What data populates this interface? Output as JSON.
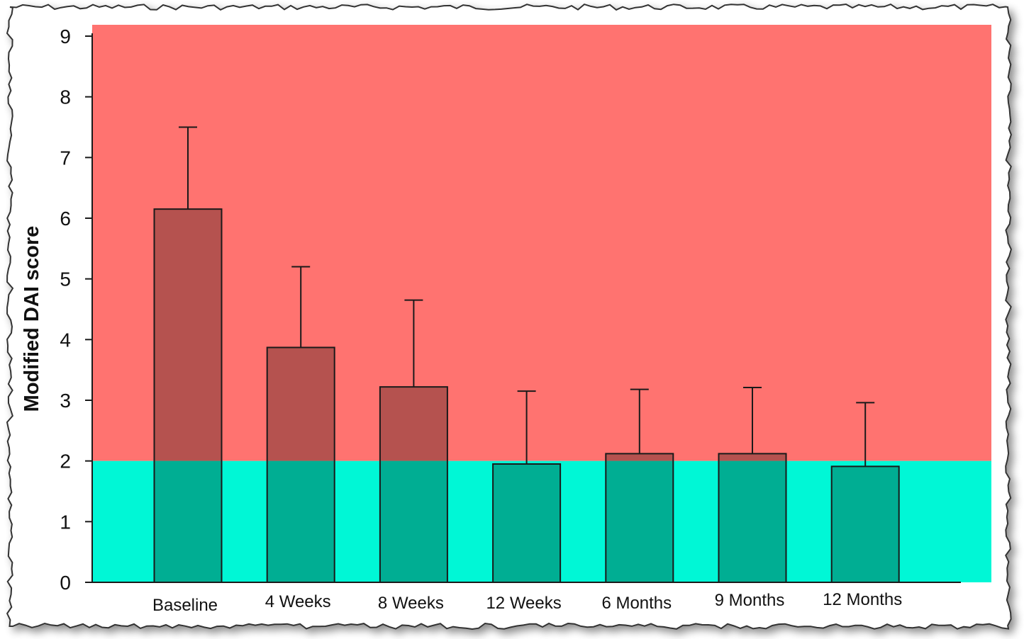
{
  "chart_data": {
    "type": "bar",
    "title": "",
    "xlabel": "",
    "ylabel": "Modified DAI score",
    "ylim": [
      0,
      9
    ],
    "yticks": [
      0,
      1,
      2,
      3,
      4,
      5,
      6,
      7,
      8,
      9
    ],
    "categories": [
      "Baseline",
      "4 Weeks",
      "8 Weeks",
      "12 Weeks",
      "6 Months",
      "9 Months",
      "12 Months"
    ],
    "values": [
      6.15,
      3.87,
      3.22,
      1.95,
      2.12,
      2.12,
      1.91
    ],
    "error_upper": [
      7.5,
      5.2,
      4.65,
      3.15,
      3.18,
      3.21,
      2.96
    ],
    "threshold": 2,
    "grid": false,
    "colors": {
      "region_above": "#ff7370",
      "region_below": "#00f7d6",
      "bar_above": "#b5524f",
      "bar_below": "#00ae93",
      "edge": "#1a1a1a"
    }
  }
}
